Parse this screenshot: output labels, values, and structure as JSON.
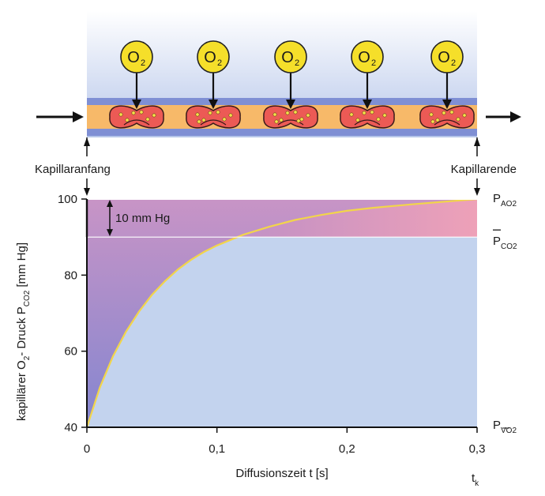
{
  "diagram": {
    "oxygen_molecule_label": "O",
    "oxygen_molecule_subscript": "2",
    "oxygen_molecule_count": 5,
    "capillary_start_label": "Kapillaranfang",
    "capillary_end_label": "Kapillarende"
  },
  "chart_data": {
    "type": "line",
    "x": [
      0,
      0.01,
      0.02,
      0.03,
      0.04,
      0.05,
      0.06,
      0.07,
      0.08,
      0.09,
      0.1,
      0.12,
      0.14,
      0.16,
      0.18,
      0.2,
      0.22,
      0.25,
      0.3
    ],
    "y": [
      40,
      50.5,
      58.6,
      65.1,
      70.4,
      74.8,
      78.4,
      81.5,
      84.0,
      86.1,
      87.8,
      90.6,
      92.7,
      94.5,
      95.8,
      96.9,
      97.7,
      98.6,
      100
    ],
    "xlim": [
      0,
      0.3
    ],
    "ylim": [
      40,
      100
    ],
    "xticks": [
      "0",
      "0,1",
      "0,2",
      "0,3"
    ],
    "xtick_values": [
      0,
      0.1,
      0.2,
      0.3
    ],
    "yticks": [
      "40",
      "60",
      "80",
      "100"
    ],
    "ytick_values": [
      40,
      60,
      80,
      100
    ],
    "xlabel": "Diffusionszeit t [s]",
    "ylabel_main": "kapillärer O",
    "ylabel_sub1": "2",
    "ylabel_mid": "- Druck P",
    "ylabel_sub2": "CO2",
    "ylabel_unit": "[mm Hg]",
    "pao2_level": 100,
    "pco2_level": 90,
    "pvo2_level": 40,
    "annotation_difference": "10 mm Hg",
    "right_label_pao2": "P",
    "right_label_pao2_sub": "AO2",
    "right_label_pco2": "P",
    "right_label_pco2_sub": "CO2",
    "right_label_pvo2": "P",
    "right_label_pvo2_sub": "VO2",
    "tk_label": "t",
    "tk_sub": "k",
    "colors": {
      "curve": "#f2d54a",
      "plot_bg": "#c3d3ee",
      "pink": "#e597b4",
      "purple": "#9c8cd0",
      "plasma": "#f7b969",
      "vessel_wall": "#7f8fd4",
      "blood_cell": "#ec5a55",
      "oxygen": "#f5df2a"
    }
  }
}
